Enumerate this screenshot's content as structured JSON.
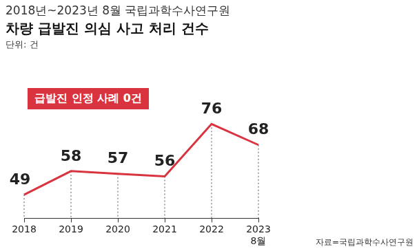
{
  "chart_data": {
    "type": "line",
    "subtitle": "2018년~2023년 8월 국립과학수사연구원",
    "title": "차량 급발진 의심 사고 처리 건수",
    "y_label": "단위: 건",
    "annotations": [
      "급발진 인정 사례 0건"
    ],
    "source": "자료=국립과학수사연구원",
    "categories": [
      "2018",
      "2019",
      "2020",
      "2021",
      "2022",
      "2023\n8월"
    ],
    "values": [
      49,
      58,
      57,
      56,
      76,
      68
    ],
    "color": "#d9333f",
    "ylim": [
      40,
      85
    ],
    "grid": false,
    "data_labels": true,
    "tick_labels": "x"
  }
}
